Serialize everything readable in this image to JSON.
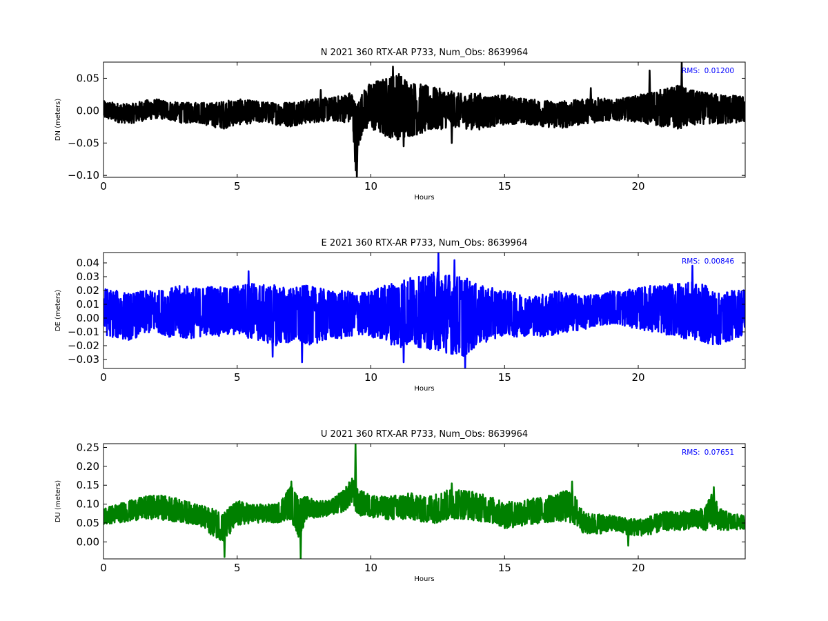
{
  "chart_data": [
    {
      "type": "line",
      "title": "N 2021 360 RTX-AR  P733, Num_Obs: 8639964",
      "xlabel": "Hours",
      "ylabel": "DN (meters)",
      "xlim": [
        0,
        24
      ],
      "ylim": [
        -0.103,
        0.075
      ],
      "xticks": [
        0,
        5,
        10,
        15,
        20
      ],
      "xtick_labels": [
        "0",
        "5",
        "10",
        "15",
        "20"
      ],
      "yticks": [
        -0.1,
        -0.05,
        0.0,
        0.05
      ],
      "ytick_labels": [
        "−0.10",
        "−0.05",
        "0.00",
        "0.05"
      ],
      "annotation": {
        "label": "RMS:",
        "value": "0.01200",
        "color": "#0000ff",
        "placement": "top-right"
      },
      "grid": false,
      "series": [
        {
          "color": "#000000",
          "band": [
            [
              0,
              -0.012,
              0.015
            ],
            [
              0.5,
              -0.018,
              0.012
            ],
            [
              1,
              -0.02,
              0.01
            ],
            [
              1.5,
              -0.016,
              0.016
            ],
            [
              2,
              -0.012,
              0.018
            ],
            [
              2.5,
              -0.015,
              0.014
            ],
            [
              3,
              -0.02,
              0.012
            ],
            [
              3.5,
              -0.018,
              0.014
            ],
            [
              4,
              -0.025,
              0.012
            ],
            [
              4.5,
              -0.028,
              0.015
            ],
            [
              5,
              -0.022,
              0.018
            ],
            [
              5.5,
              -0.02,
              0.016
            ],
            [
              6,
              -0.018,
              0.014
            ],
            [
              6.5,
              -0.022,
              0.012
            ],
            [
              7,
              -0.025,
              0.015
            ],
            [
              7.5,
              -0.02,
              0.016
            ],
            [
              8,
              -0.018,
              0.02
            ],
            [
              8.5,
              -0.016,
              0.02
            ],
            [
              9,
              -0.018,
              0.025
            ],
            [
              9.3,
              -0.02,
              0.03
            ],
            [
              9.45,
              -0.103,
              0.01
            ],
            [
              9.55,
              -0.06,
              0.02
            ],
            [
              9.7,
              -0.03,
              0.03
            ],
            [
              10,
              -0.03,
              0.045
            ],
            [
              10.5,
              -0.04,
              0.05
            ],
            [
              11,
              -0.045,
              0.06
            ],
            [
              11.5,
              -0.04,
              0.045
            ],
            [
              12,
              -0.035,
              0.04
            ],
            [
              12.5,
              -0.03,
              0.035
            ],
            [
              13,
              -0.025,
              0.03
            ],
            [
              13.5,
              -0.028,
              0.025
            ],
            [
              14,
              -0.03,
              0.028
            ],
            [
              14.5,
              -0.025,
              0.022
            ],
            [
              15,
              -0.022,
              0.025
            ],
            [
              15.5,
              -0.02,
              0.02
            ],
            [
              16,
              -0.022,
              0.018
            ],
            [
              16.5,
              -0.025,
              0.016
            ],
            [
              17,
              -0.028,
              0.015
            ],
            [
              17.5,
              -0.025,
              0.016
            ],
            [
              18,
              -0.02,
              0.018
            ],
            [
              18.5,
              -0.018,
              0.022
            ],
            [
              19,
              -0.015,
              0.016
            ],
            [
              19.5,
              -0.015,
              0.02
            ],
            [
              20,
              -0.018,
              0.024
            ],
            [
              20.5,
              -0.022,
              0.03
            ],
            [
              21,
              -0.026,
              0.034
            ],
            [
              21.5,
              -0.028,
              0.04
            ],
            [
              22,
              -0.025,
              0.032
            ],
            [
              22.5,
              -0.02,
              0.028
            ],
            [
              23,
              -0.022,
              0.026
            ],
            [
              23.5,
              -0.02,
              0.024
            ],
            [
              24,
              -0.018,
              0.022
            ]
          ],
          "spikes": [
            [
              9.45,
              -0.103
            ],
            [
              10.8,
              0.068
            ],
            [
              20.4,
              0.062
            ],
            [
              21.6,
              0.075
            ],
            [
              11.2,
              -0.055
            ],
            [
              13,
              -0.05
            ],
            [
              8.1,
              0.032
            ],
            [
              18.2,
              0.035
            ]
          ]
        }
      ]
    },
    {
      "type": "line",
      "title": "E 2021 360 RTX-AR  P733, Num_Obs: 8639964",
      "xlabel": "Hours",
      "ylabel": "DE (meters)",
      "xlim": [
        0,
        24
      ],
      "ylim": [
        -0.0365,
        0.0475
      ],
      "xticks": [
        0,
        5,
        10,
        15,
        20
      ],
      "xtick_labels": [
        "0",
        "5",
        "10",
        "15",
        "20"
      ],
      "yticks": [
        -0.03,
        -0.02,
        -0.01,
        0.0,
        0.01,
        0.02,
        0.03,
        0.04
      ],
      "ytick_labels": [
        "−0.03",
        "−0.02",
        "−0.01",
        "0.00",
        "0.01",
        "0.02",
        "0.03",
        "0.04"
      ],
      "annotation": {
        "label": "RMS:",
        "value": "0.00846",
        "color": "#0000ff",
        "placement": "top-right"
      },
      "grid": false,
      "series": [
        {
          "color": "#0000ff",
          "band": [
            [
              0,
              -0.012,
              0.022
            ],
            [
              0.5,
              -0.015,
              0.02
            ],
            [
              1,
              -0.016,
              0.018
            ],
            [
              1.5,
              -0.012,
              0.02
            ],
            [
              2,
              -0.01,
              0.02
            ],
            [
              2.5,
              -0.014,
              0.022
            ],
            [
              3,
              -0.016,
              0.024
            ],
            [
              3.5,
              -0.014,
              0.022
            ],
            [
              4,
              -0.012,
              0.024
            ],
            [
              4.5,
              -0.014,
              0.022
            ],
            [
              5,
              -0.012,
              0.024
            ],
            [
              5.5,
              -0.015,
              0.026
            ],
            [
              6,
              -0.018,
              0.024
            ],
            [
              6.5,
              -0.02,
              0.024
            ],
            [
              7,
              -0.018,
              0.022
            ],
            [
              7.5,
              -0.02,
              0.024
            ],
            [
              8,
              -0.018,
              0.022
            ],
            [
              8.5,
              -0.016,
              0.02
            ],
            [
              9,
              -0.015,
              0.02
            ],
            [
              9.5,
              -0.012,
              0.018
            ],
            [
              10,
              -0.014,
              0.02
            ],
            [
              10.5,
              -0.016,
              0.024
            ],
            [
              11,
              -0.022,
              0.028
            ],
            [
              11.5,
              -0.02,
              0.03
            ],
            [
              12,
              -0.022,
              0.03
            ],
            [
              12.5,
              -0.024,
              0.035
            ],
            [
              13,
              -0.026,
              0.032
            ],
            [
              13.5,
              -0.028,
              0.03
            ],
            [
              14,
              -0.02,
              0.024
            ],
            [
              14.5,
              -0.016,
              0.022
            ],
            [
              15,
              -0.012,
              0.02
            ],
            [
              15.5,
              -0.014,
              0.018
            ],
            [
              16,
              -0.012,
              0.016
            ],
            [
              16.5,
              -0.014,
              0.018
            ],
            [
              17,
              -0.012,
              0.02
            ],
            [
              17.5,
              -0.01,
              0.018
            ],
            [
              18,
              -0.008,
              0.016
            ],
            [
              18.5,
              -0.006,
              0.018
            ],
            [
              19,
              -0.004,
              0.02
            ],
            [
              19.5,
              -0.006,
              0.02
            ],
            [
              20,
              -0.008,
              0.022
            ],
            [
              20.5,
              -0.01,
              0.024
            ],
            [
              21,
              -0.012,
              0.024
            ],
            [
              21.5,
              -0.014,
              0.026
            ],
            [
              22,
              -0.016,
              0.026
            ],
            [
              22.5,
              -0.018,
              0.024
            ],
            [
              23,
              -0.02,
              0.018
            ],
            [
              23.5,
              -0.016,
              0.02
            ],
            [
              24,
              -0.012,
              0.022
            ]
          ],
          "spikes": [
            [
              12.5,
              0.0475
            ],
            [
              13.1,
              0.042
            ],
            [
              13.5,
              -0.0365
            ],
            [
              7.4,
              -0.032
            ],
            [
              11.2,
              -0.032
            ],
            [
              6.3,
              -0.028
            ],
            [
              22,
              0.038
            ],
            [
              5.4,
              0.034
            ]
          ]
        }
      ]
    },
    {
      "type": "line",
      "title": "U 2021 360 RTX-AR  P733, Num_Obs: 8639964",
      "xlabel": "Hours",
      "ylabel": "DU (meters)",
      "xlim": [
        0,
        24
      ],
      "ylim": [
        -0.045,
        0.26
      ],
      "xticks": [
        0,
        5,
        10,
        15,
        20
      ],
      "xtick_labels": [
        "0",
        "5",
        "10",
        "15",
        "20"
      ],
      "yticks": [
        0.0,
        0.05,
        0.1,
        0.15,
        0.2,
        0.25
      ],
      "ytick_labels": [
        "0.00",
        "0.05",
        "0.10",
        "0.15",
        "0.20",
        "0.25"
      ],
      "annotation": {
        "label": "RMS:",
        "value": "0.07651",
        "color": "#0000ff",
        "placement": "top-right"
      },
      "grid": false,
      "series": [
        {
          "color": "#008000",
          "band": [
            [
              0,
              0.045,
              0.09
            ],
            [
              0.5,
              0.05,
              0.1
            ],
            [
              1,
              0.055,
              0.11
            ],
            [
              1.5,
              0.06,
              0.12
            ],
            [
              2,
              0.06,
              0.125
            ],
            [
              2.5,
              0.055,
              0.12
            ],
            [
              3,
              0.05,
              0.11
            ],
            [
              3.5,
              0.045,
              0.1
            ],
            [
              4,
              0.02,
              0.09
            ],
            [
              4.5,
              0.0,
              0.08
            ],
            [
              5,
              0.04,
              0.11
            ],
            [
              5.5,
              0.05,
              0.1
            ],
            [
              6,
              0.05,
              0.1
            ],
            [
              6.5,
              0.05,
              0.1
            ],
            [
              7,
              0.06,
              0.15
            ],
            [
              7.3,
              0.01,
              0.12
            ],
            [
              7.6,
              0.06,
              0.12
            ],
            [
              8,
              0.065,
              0.11
            ],
            [
              8.5,
              0.07,
              0.11
            ],
            [
              9,
              0.08,
              0.14
            ],
            [
              9.3,
              0.1,
              0.17
            ],
            [
              9.5,
              0.07,
              0.14
            ],
            [
              10,
              0.065,
              0.125
            ],
            [
              10.5,
              0.06,
              0.12
            ],
            [
              11,
              0.055,
              0.125
            ],
            [
              11.5,
              0.06,
              0.13
            ],
            [
              12,
              0.05,
              0.12
            ],
            [
              12.5,
              0.05,
              0.13
            ],
            [
              13,
              0.06,
              0.14
            ],
            [
              13.5,
              0.06,
              0.14
            ],
            [
              14,
              0.055,
              0.13
            ],
            [
              14.5,
              0.05,
              0.12
            ],
            [
              15,
              0.035,
              0.105
            ],
            [
              15.5,
              0.04,
              0.11
            ],
            [
              16,
              0.045,
              0.115
            ],
            [
              16.5,
              0.05,
              0.12
            ],
            [
              17,
              0.055,
              0.13
            ],
            [
              17.5,
              0.05,
              0.14
            ],
            [
              18,
              0.02,
              0.075
            ],
            [
              18.5,
              0.02,
              0.075
            ],
            [
              19,
              0.03,
              0.07
            ],
            [
              19.5,
              0.02,
              0.065
            ],
            [
              20,
              0.015,
              0.06
            ],
            [
              20.5,
              0.02,
              0.07
            ],
            [
              21,
              0.03,
              0.08
            ],
            [
              21.5,
              0.03,
              0.08
            ],
            [
              22,
              0.035,
              0.085
            ],
            [
              22.5,
              0.03,
              0.09
            ],
            [
              22.8,
              0.04,
              0.14
            ],
            [
              23,
              0.03,
              0.09
            ],
            [
              23.5,
              0.03,
              0.075
            ],
            [
              24,
              0.035,
              0.07
            ]
          ],
          "spikes": [
            [
              9.4,
              0.26
            ],
            [
              7.35,
              -0.045
            ],
            [
              4.5,
              -0.04
            ],
            [
              7.0,
              0.16
            ],
            [
              17.5,
              0.16
            ],
            [
              22.8,
              0.145
            ],
            [
              13,
              0.155
            ],
            [
              19.6,
              -0.01
            ]
          ]
        }
      ]
    }
  ]
}
